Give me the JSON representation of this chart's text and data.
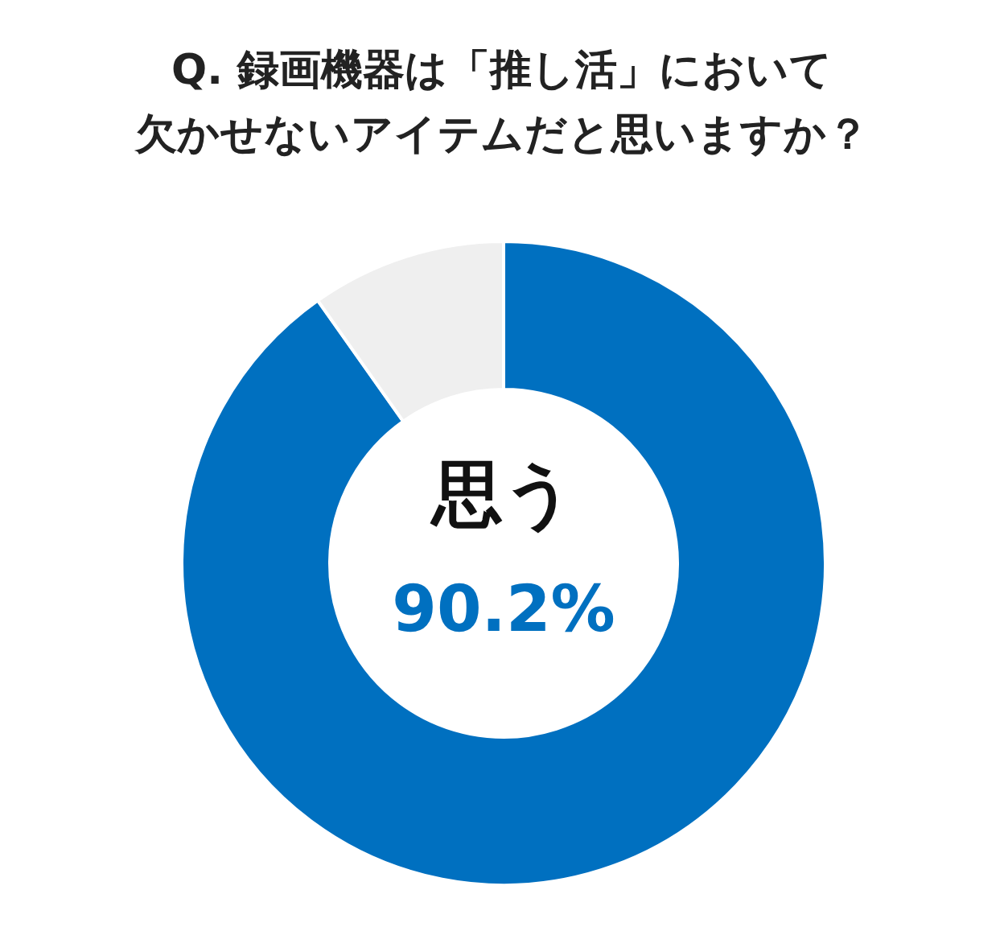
{
  "chart_data": {
    "type": "donut",
    "title": "Q. 録画機器は「推し活」において欠かせないアイテムだと思いますか？",
    "categories": [
      "思う",
      null
    ],
    "values": [
      90.2,
      9.8
    ],
    "colors": [
      "#0070c0",
      "#efefef"
    ],
    "value_labels": [
      "90.2%",
      null
    ],
    "legend": false
  }
}
